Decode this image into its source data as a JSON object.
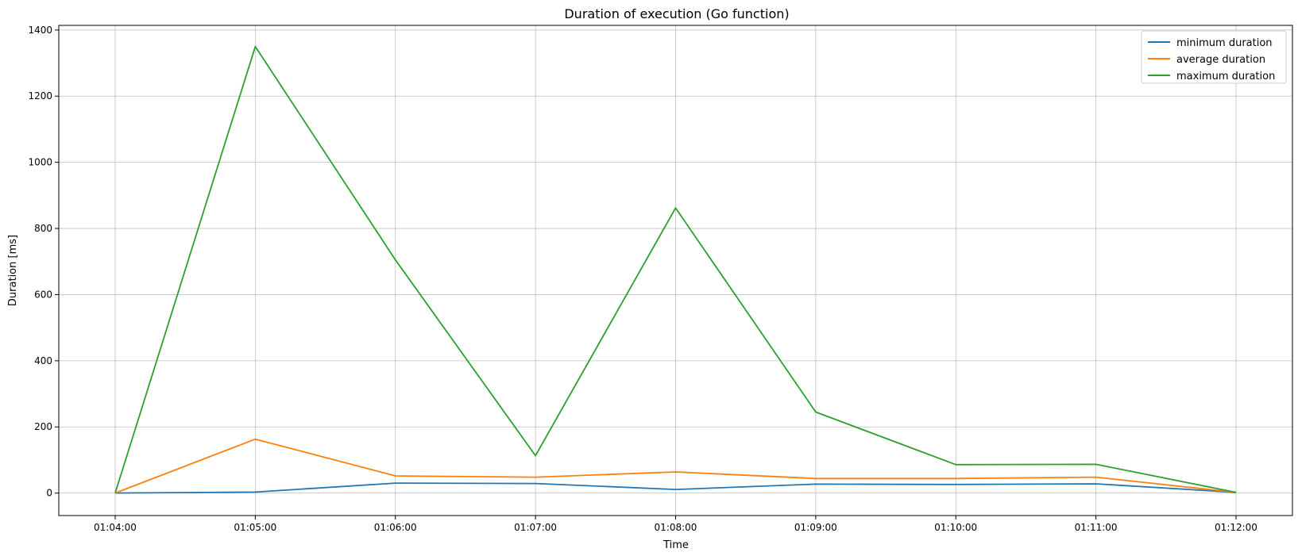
{
  "chart_data": {
    "type": "line",
    "title": "Duration of execution (Go function)",
    "xlabel": "Time",
    "ylabel": "Duration [ms]",
    "x": [
      "01:04:00",
      "01:05:00",
      "01:06:00",
      "01:07:00",
      "01:08:00",
      "01:09:00",
      "01:10:00",
      "01:11:00",
      "01:12:00"
    ],
    "ylim": [
      -68,
      1414
    ],
    "yticks": [
      0,
      200,
      400,
      600,
      800,
      1000,
      1200,
      1400
    ],
    "grid": true,
    "legend_position": "top-right",
    "series": [
      {
        "name": "minimum duration",
        "color": "#1f77b4",
        "values": [
          0,
          3,
          30,
          29,
          11,
          27,
          26,
          28,
          2
        ]
      },
      {
        "name": "average duration",
        "color": "#ff7f0e",
        "values": [
          0,
          163,
          52,
          48,
          64,
          44,
          44,
          48,
          2
        ]
      },
      {
        "name": "maximum duration",
        "color": "#2ca02c",
        "values": [
          0,
          1350,
          705,
          113,
          862,
          245,
          86,
          87,
          2
        ]
      }
    ]
  }
}
